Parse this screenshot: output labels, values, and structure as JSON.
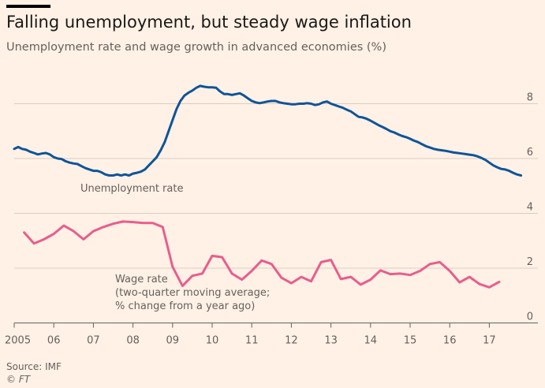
{
  "title": "Falling unemployment, but steady wage inflation",
  "subtitle": "Unemployment rate and wage growth in advanced economies (%)",
  "source": "Source: IMF",
  "credit": "© FT",
  "chart_data": {
    "type": "line",
    "xlim": [
      2005,
      2018
    ],
    "ylim": [
      0,
      9
    ],
    "grid": true,
    "y_axis_position": "right",
    "x_ticks": [
      {
        "value": 2005,
        "label": "2005"
      },
      {
        "value": 2006,
        "label": "06"
      },
      {
        "value": 2007,
        "label": "07"
      },
      {
        "value": 2008,
        "label": "08"
      },
      {
        "value": 2009,
        "label": "09"
      },
      {
        "value": 2010,
        "label": "10"
      },
      {
        "value": 2011,
        "label": "11"
      },
      {
        "value": 2012,
        "label": "12"
      },
      {
        "value": 2013,
        "label": "13"
      },
      {
        "value": 2014,
        "label": "14"
      },
      {
        "value": 2015,
        "label": "15"
      },
      {
        "value": 2016,
        "label": "16"
      },
      {
        "value": 2017,
        "label": "17"
      }
    ],
    "y_ticks": [
      {
        "value": 0,
        "label": "0"
      },
      {
        "value": 2,
        "label": "2"
      },
      {
        "value": 4,
        "label": "4"
      },
      {
        "value": 6,
        "label": "6"
      },
      {
        "value": 8,
        "label": "8"
      }
    ],
    "series": [
      {
        "name": "Unemployment rate",
        "color": "#0f5499",
        "points": [
          [
            2005.0,
            6.35
          ],
          [
            2005.1,
            6.42
          ],
          [
            2005.2,
            6.35
          ],
          [
            2005.3,
            6.32
          ],
          [
            2005.4,
            6.25
          ],
          [
            2005.5,
            6.2
          ],
          [
            2005.6,
            6.15
          ],
          [
            2005.7,
            6.18
          ],
          [
            2005.8,
            6.2
          ],
          [
            2005.9,
            6.15
          ],
          [
            2006.0,
            6.05
          ],
          [
            2006.1,
            6.0
          ],
          [
            2006.2,
            5.98
          ],
          [
            2006.3,
            5.9
          ],
          [
            2006.4,
            5.85
          ],
          [
            2006.5,
            5.82
          ],
          [
            2006.6,
            5.8
          ],
          [
            2006.7,
            5.72
          ],
          [
            2006.8,
            5.65
          ],
          [
            2006.9,
            5.6
          ],
          [
            2007.0,
            5.55
          ],
          [
            2007.1,
            5.55
          ],
          [
            2007.2,
            5.5
          ],
          [
            2007.3,
            5.42
          ],
          [
            2007.4,
            5.38
          ],
          [
            2007.5,
            5.38
          ],
          [
            2007.6,
            5.42
          ],
          [
            2007.7,
            5.38
          ],
          [
            2007.8,
            5.42
          ],
          [
            2007.9,
            5.38
          ],
          [
            2008.0,
            5.45
          ],
          [
            2008.1,
            5.48
          ],
          [
            2008.2,
            5.52
          ],
          [
            2008.3,
            5.6
          ],
          [
            2008.4,
            5.75
          ],
          [
            2008.5,
            5.9
          ],
          [
            2008.6,
            6.05
          ],
          [
            2008.7,
            6.3
          ],
          [
            2008.8,
            6.6
          ],
          [
            2008.9,
            7.0
          ],
          [
            2009.0,
            7.4
          ],
          [
            2009.1,
            7.8
          ],
          [
            2009.2,
            8.1
          ],
          [
            2009.3,
            8.3
          ],
          [
            2009.4,
            8.4
          ],
          [
            2009.5,
            8.48
          ],
          [
            2009.6,
            8.58
          ],
          [
            2009.7,
            8.65
          ],
          [
            2009.8,
            8.62
          ],
          [
            2009.9,
            8.6
          ],
          [
            2010.0,
            8.6
          ],
          [
            2010.1,
            8.58
          ],
          [
            2010.2,
            8.45
          ],
          [
            2010.3,
            8.35
          ],
          [
            2010.4,
            8.35
          ],
          [
            2010.5,
            8.32
          ],
          [
            2010.6,
            8.35
          ],
          [
            2010.7,
            8.38
          ],
          [
            2010.8,
            8.3
          ],
          [
            2010.9,
            8.2
          ],
          [
            2011.0,
            8.1
          ],
          [
            2011.1,
            8.05
          ],
          [
            2011.2,
            8.02
          ],
          [
            2011.3,
            8.05
          ],
          [
            2011.4,
            8.08
          ],
          [
            2011.5,
            8.1
          ],
          [
            2011.6,
            8.1
          ],
          [
            2011.7,
            8.05
          ],
          [
            2011.8,
            8.02
          ],
          [
            2011.9,
            8.0
          ],
          [
            2012.0,
            7.98
          ],
          [
            2012.1,
            7.98
          ],
          [
            2012.2,
            8.0
          ],
          [
            2012.3,
            8.0
          ],
          [
            2012.4,
            8.02
          ],
          [
            2012.5,
            8.0
          ],
          [
            2012.6,
            7.95
          ],
          [
            2012.7,
            7.98
          ],
          [
            2012.8,
            8.05
          ],
          [
            2012.9,
            8.08
          ],
          [
            2013.0,
            8.0
          ],
          [
            2013.1,
            7.95
          ],
          [
            2013.2,
            7.9
          ],
          [
            2013.3,
            7.85
          ],
          [
            2013.4,
            7.78
          ],
          [
            2013.5,
            7.72
          ],
          [
            2013.6,
            7.62
          ],
          [
            2013.7,
            7.52
          ],
          [
            2013.8,
            7.5
          ],
          [
            2013.9,
            7.45
          ],
          [
            2014.0,
            7.38
          ],
          [
            2014.1,
            7.3
          ],
          [
            2014.2,
            7.22
          ],
          [
            2014.3,
            7.15
          ],
          [
            2014.4,
            7.08
          ],
          [
            2014.5,
            7.0
          ],
          [
            2014.6,
            6.95
          ],
          [
            2014.7,
            6.88
          ],
          [
            2014.8,
            6.82
          ],
          [
            2014.9,
            6.78
          ],
          [
            2015.0,
            6.72
          ],
          [
            2015.1,
            6.65
          ],
          [
            2015.2,
            6.6
          ],
          [
            2015.3,
            6.52
          ],
          [
            2015.4,
            6.45
          ],
          [
            2015.5,
            6.4
          ],
          [
            2015.6,
            6.35
          ],
          [
            2015.7,
            6.32
          ],
          [
            2015.8,
            6.3
          ],
          [
            2015.9,
            6.28
          ],
          [
            2016.0,
            6.25
          ],
          [
            2016.1,
            6.22
          ],
          [
            2016.2,
            6.2
          ],
          [
            2016.3,
            6.18
          ],
          [
            2016.4,
            6.16
          ],
          [
            2016.5,
            6.14
          ],
          [
            2016.6,
            6.12
          ],
          [
            2016.7,
            6.08
          ],
          [
            2016.8,
            6.02
          ],
          [
            2016.9,
            5.95
          ],
          [
            2017.0,
            5.85
          ],
          [
            2017.1,
            5.75
          ],
          [
            2017.2,
            5.68
          ],
          [
            2017.3,
            5.62
          ],
          [
            2017.4,
            5.6
          ],
          [
            2017.5,
            5.55
          ],
          [
            2017.6,
            5.48
          ],
          [
            2017.7,
            5.42
          ],
          [
            2017.8,
            5.38
          ]
        ]
      },
      {
        "name": "Wage rate",
        "color": "#e95d8c",
        "points": [
          [
            2005.25,
            3.3
          ],
          [
            2005.5,
            2.9
          ],
          [
            2005.75,
            3.05
          ],
          [
            2006.0,
            3.25
          ],
          [
            2006.25,
            3.55
          ],
          [
            2006.5,
            3.35
          ],
          [
            2006.75,
            3.05
          ],
          [
            2007.0,
            3.35
          ],
          [
            2007.25,
            3.5
          ],
          [
            2007.5,
            3.62
          ],
          [
            2007.75,
            3.7
          ],
          [
            2008.0,
            3.68
          ],
          [
            2008.25,
            3.65
          ],
          [
            2008.5,
            3.65
          ],
          [
            2008.75,
            3.5
          ],
          [
            2009.0,
            2.05
          ],
          [
            2009.25,
            1.35
          ],
          [
            2009.5,
            1.72
          ],
          [
            2009.75,
            1.8
          ],
          [
            2010.0,
            2.45
          ],
          [
            2010.25,
            2.4
          ],
          [
            2010.5,
            1.8
          ],
          [
            2010.75,
            1.58
          ],
          [
            2011.0,
            1.9
          ],
          [
            2011.25,
            2.28
          ],
          [
            2011.5,
            2.15
          ],
          [
            2011.75,
            1.65
          ],
          [
            2012.0,
            1.45
          ],
          [
            2012.25,
            1.68
          ],
          [
            2012.5,
            1.52
          ],
          [
            2012.75,
            2.22
          ],
          [
            2013.0,
            2.3
          ],
          [
            2013.25,
            1.6
          ],
          [
            2013.5,
            1.68
          ],
          [
            2013.75,
            1.4
          ],
          [
            2014.0,
            1.58
          ],
          [
            2014.25,
            1.92
          ],
          [
            2014.5,
            1.78
          ],
          [
            2014.75,
            1.8
          ],
          [
            2015.0,
            1.75
          ],
          [
            2015.25,
            1.9
          ],
          [
            2015.5,
            2.15
          ],
          [
            2015.75,
            2.22
          ],
          [
            2016.0,
            1.9
          ],
          [
            2016.25,
            1.48
          ],
          [
            2016.5,
            1.68
          ],
          [
            2016.75,
            1.42
          ],
          [
            2017.0,
            1.3
          ],
          [
            2017.25,
            1.5
          ]
        ]
      }
    ],
    "annotations": [
      {
        "series": "Unemployment rate",
        "lines": [
          "Unemployment rate"
        ]
      },
      {
        "series": "Wage rate",
        "lines": [
          "Wage rate",
          "(two-quarter moving average;",
          "% change from a year ago)"
        ]
      }
    ]
  }
}
